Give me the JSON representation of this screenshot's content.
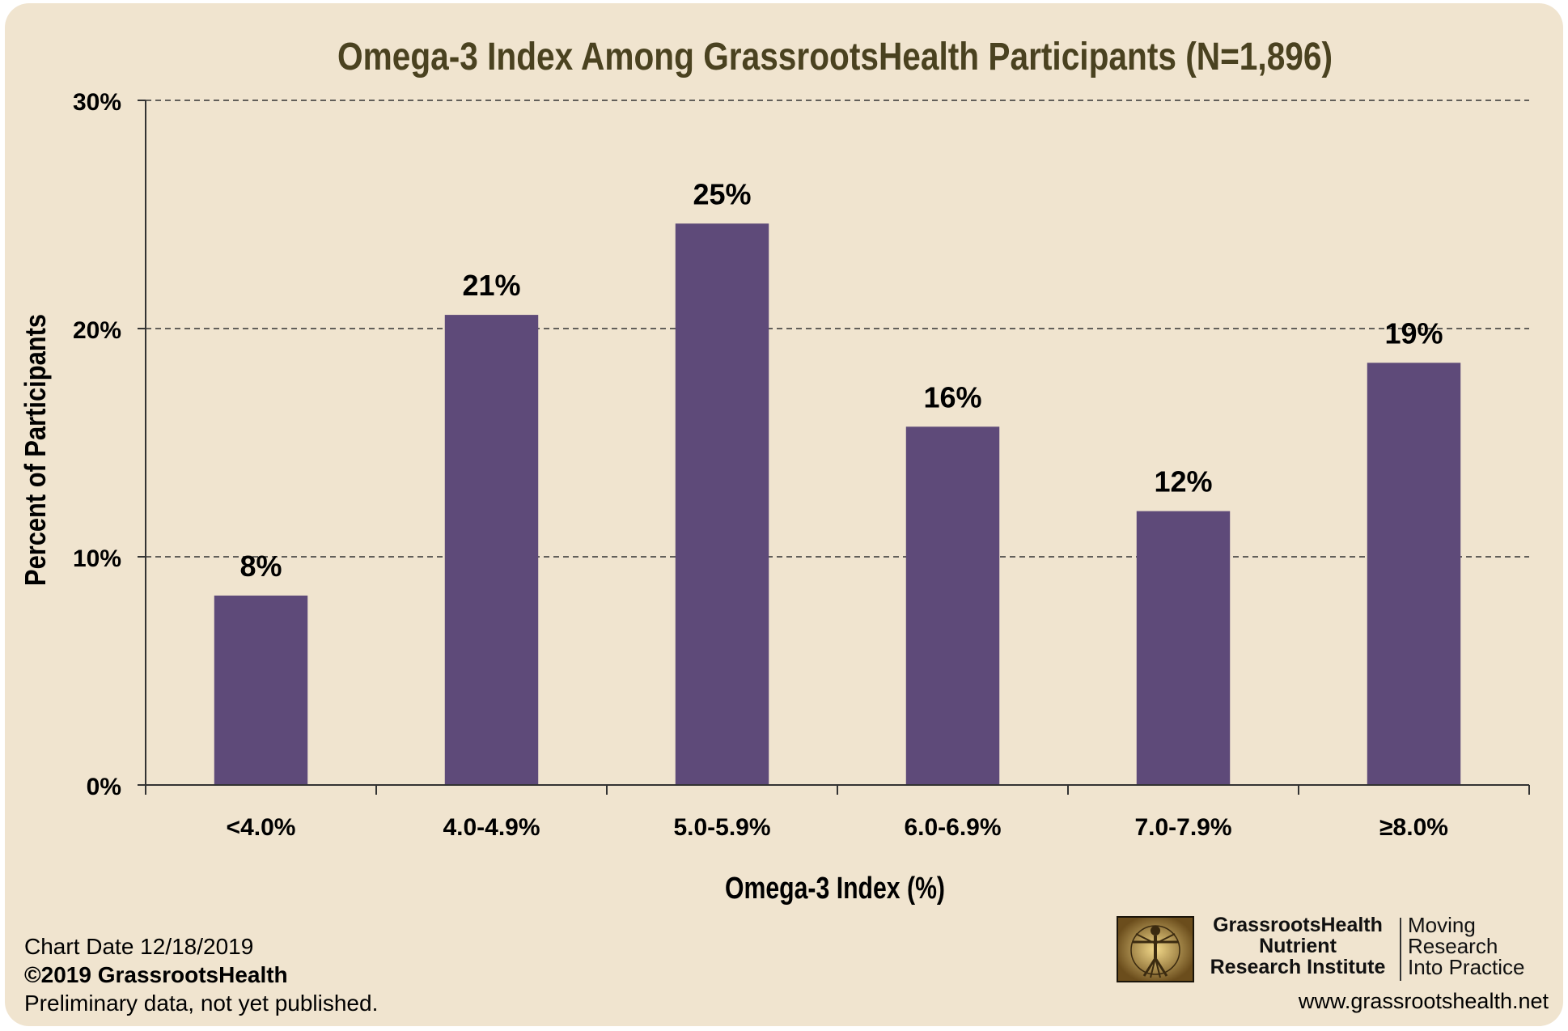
{
  "chart_data": {
    "type": "bar",
    "title": "Omega-3 Index Among GrassrootsHealth Participants (N=1,896)",
    "xlabel": "Omega-3 Index (%)",
    "ylabel": "Percent of Participants",
    "categories": [
      "<4.0%",
      "4.0-4.9%",
      "5.0-5.9%",
      "6.0-6.9%",
      "7.0-7.9%",
      "≥8.0%"
    ],
    "values": [
      8.3,
      20.6,
      24.6,
      15.7,
      12.0,
      18.5
    ],
    "data_labels": [
      "8%",
      "21%",
      "25%",
      "16%",
      "12%",
      "19%"
    ],
    "ylim": [
      0,
      30
    ],
    "yticks": [
      0,
      10,
      20,
      30
    ],
    "ytick_labels": [
      "0%",
      "10%",
      "20%",
      "30%"
    ],
    "grid": "horizontal dashed",
    "colors": {
      "bar": "#5e4a79",
      "background": "#f0e4cf",
      "title": "#4a4220",
      "axis": "#333333",
      "text": "#000000"
    }
  },
  "footer": {
    "chart_date": "Chart Date 12/18/2019",
    "copyright": "©2019 GrassrootsHealth",
    "note": "Preliminary data, not yet published.",
    "url": "www.grassrootshealth.net"
  },
  "logo": {
    "name_line1": "GrassrootsHealth",
    "name_line2": "Nutrient",
    "name_line3": "Research Institute",
    "tagline1": "Moving",
    "tagline2": "Research",
    "tagline3": "Into Practice",
    "emblem_icon": "vitruvian-man-icon"
  }
}
